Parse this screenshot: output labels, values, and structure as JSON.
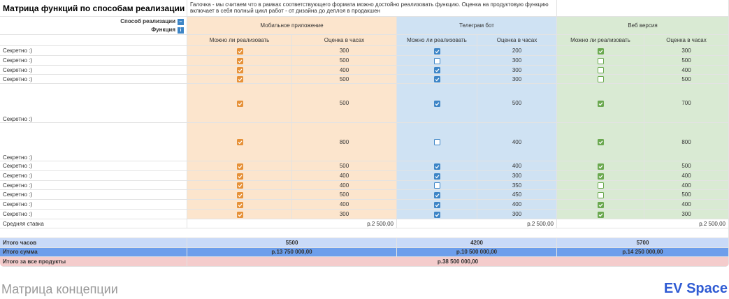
{
  "title": "Матрица функций по способам реализации",
  "note": "Галочка - мы считаем что в рамках соответствующего формата можно достойно реализовать функцию. Оценка на продуктовую функцию включает в себя полный цикл работ - от дизайна до деплоя в продакшен",
  "corner": {
    "method": "Способ реализации",
    "feature": "Функция"
  },
  "groups": [
    {
      "name": "Мобильное приложение",
      "color": "#fce5cd",
      "check_color": "#e69138",
      "col_can": "Можно ли реализовать",
      "col_hours": "Оценка в часах"
    },
    {
      "name": "Телеграм бот",
      "color": "#cfe2f3",
      "check_color": "#3d85c6",
      "col_can": "Можно ли реализовать",
      "col_hours": "Оценка в часах"
    },
    {
      "name": "Веб версия",
      "color": "#d9ead3",
      "check_color": "#6aa84f",
      "col_can": "Можно ли реализовать",
      "col_hours": "Оценка в часах"
    }
  ],
  "rows": [
    {
      "label": "Секретно :)",
      "cells": [
        {
          "can": true,
          "hours": 300
        },
        {
          "can": true,
          "hours": 200
        },
        {
          "can": true,
          "hours": 300
        }
      ]
    },
    {
      "label": "Секретно :)",
      "cells": [
        {
          "can": true,
          "hours": 500
        },
        {
          "can": false,
          "hours": 300
        },
        {
          "can": false,
          "hours": 500
        }
      ]
    },
    {
      "label": "Секретно :)",
      "cells": [
        {
          "can": true,
          "hours": 400
        },
        {
          "can": true,
          "hours": 300
        },
        {
          "can": false,
          "hours": 400
        }
      ]
    },
    {
      "label": "Секретно :)",
      "cells": [
        {
          "can": true,
          "hours": 500
        },
        {
          "can": true,
          "hours": 300
        },
        {
          "can": false,
          "hours": 500
        }
      ]
    },
    {
      "label": "Секретно :)",
      "cells": [
        {
          "can": true,
          "hours": 500
        },
        {
          "can": true,
          "hours": 500
        },
        {
          "can": true,
          "hours": 700
        }
      ]
    },
    {
      "label": "Секретно :)",
      "cells": [
        {
          "can": true,
          "hours": 800
        },
        {
          "can": false,
          "hours": 400
        },
        {
          "can": true,
          "hours": 800
        }
      ]
    },
    {
      "label": "Секретно :)",
      "cells": [
        {
          "can": true,
          "hours": 500
        },
        {
          "can": true,
          "hours": 400
        },
        {
          "can": true,
          "hours": 500
        }
      ]
    },
    {
      "label": "Секретно :)",
      "cells": [
        {
          "can": true,
          "hours": 400
        },
        {
          "can": true,
          "hours": 300
        },
        {
          "can": true,
          "hours": 400
        }
      ]
    },
    {
      "label": "Секретно :)",
      "cells": [
        {
          "can": true,
          "hours": 400
        },
        {
          "can": false,
          "hours": 350
        },
        {
          "can": false,
          "hours": 400
        }
      ]
    },
    {
      "label": "Секретно :)",
      "cells": [
        {
          "can": true,
          "hours": 500
        },
        {
          "can": true,
          "hours": 450
        },
        {
          "can": false,
          "hours": 500
        }
      ]
    },
    {
      "label": "Секретно :)",
      "cells": [
        {
          "can": true,
          "hours": 400
        },
        {
          "can": true,
          "hours": 400
        },
        {
          "can": true,
          "hours": 400
        }
      ]
    },
    {
      "label": "Секретно :)",
      "cells": [
        {
          "can": true,
          "hours": 300
        },
        {
          "can": true,
          "hours": 300
        },
        {
          "can": true,
          "hours": 300
        }
      ]
    }
  ],
  "average": {
    "label": "Средняя ставка",
    "values": [
      "р.2 500,00",
      "р.2 500,00",
      "р.2 500,00"
    ]
  },
  "totals": [
    {
      "label": "Итого часов",
      "color": "#c9daf8",
      "values": [
        5500,
        4200,
        5700
      ]
    },
    {
      "label": "Итого сумма",
      "color": "#6d9eeb",
      "values": [
        "р.13 750 000,00",
        "р.10 500 000,00",
        "р.14 250 000,00"
      ]
    }
  ],
  "grand_total": {
    "label": "Итого за все продукты",
    "color": "#f4cccc",
    "value": "р.38 500 000,00"
  },
  "footer": {
    "caption": "Матрица концепции",
    "brand": "EV Space"
  }
}
